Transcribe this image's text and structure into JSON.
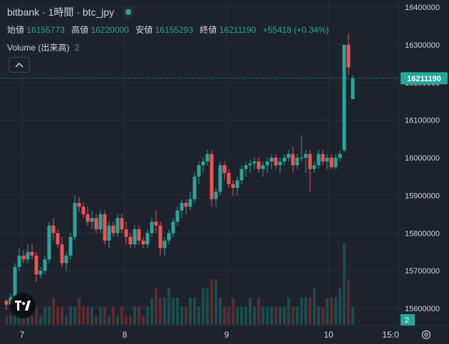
{
  "legend": {
    "symbol": "bitbank · 1時間 · btc_jpy",
    "open_label": "始値",
    "open": "16155773",
    "high_label": "高値",
    "high": "16220000",
    "low_label": "安値",
    "low": "16155293",
    "close_label": "終値",
    "close": "16211190",
    "change": "+55418 (+0.34%)",
    "volume_label": "Volume (出来高)",
    "volume_value": "2"
  },
  "price_scale": {
    "ticks": [
      15600000,
      15700000,
      15800000,
      15900000,
      16000000,
      16100000,
      16200000,
      16300000,
      16400000
    ],
    "last_price": 16211190,
    "last_price_label": "16211190",
    "volume_label": "2"
  },
  "time_scale": {
    "labels": [
      "7",
      "8",
      "9",
      "10",
      "15:0"
    ]
  },
  "colors": {
    "up": "#26a69a",
    "down": "#ef5350",
    "background": "#1e222d",
    "grid": "#2a2e39"
  },
  "icons": {
    "visibility": "eye-icon",
    "collapse": "chevron-up-icon",
    "logo": "tradingview-logo-icon",
    "settings": "gear-icon"
  },
  "chart_data": {
    "type": "candlestick",
    "interval": "1時間",
    "ylim": [
      15560000,
      16420000
    ],
    "candles": [
      [
        15620000,
        15625000,
        15595000,
        15610000
      ],
      [
        15610000,
        15640000,
        15600000,
        15630000
      ],
      [
        15630000,
        15720000,
        15625000,
        15710000
      ],
      [
        15710000,
        15760000,
        15700000,
        15740000
      ],
      [
        15740000,
        15755000,
        15720000,
        15730000
      ],
      [
        15730000,
        15770000,
        15720000,
        15750000
      ],
      [
        15750000,
        15770000,
        15730000,
        15740000
      ],
      [
        15740000,
        15750000,
        15670000,
        15690000
      ],
      [
        15690000,
        15710000,
        15680000,
        15700000
      ],
      [
        15700000,
        15740000,
        15690000,
        15730000
      ],
      [
        15730000,
        15830000,
        15720000,
        15820000
      ],
      [
        15820000,
        15840000,
        15780000,
        15800000
      ],
      [
        15800000,
        15810000,
        15760000,
        15770000
      ],
      [
        15770000,
        15790000,
        15710000,
        15720000
      ],
      [
        15720000,
        15750000,
        15700000,
        15740000
      ],
      [
        15740000,
        15800000,
        15730000,
        15790000
      ],
      [
        15790000,
        15900000,
        15780000,
        15880000
      ],
      [
        15880000,
        15895000,
        15855000,
        15870000
      ],
      [
        15870000,
        15880000,
        15840000,
        15850000
      ],
      [
        15850000,
        15870000,
        15820000,
        15830000
      ],
      [
        15830000,
        15860000,
        15810000,
        15840000
      ],
      [
        15840000,
        15850000,
        15800000,
        15810000
      ],
      [
        15810000,
        15860000,
        15800000,
        15850000
      ],
      [
        15850000,
        15860000,
        15770000,
        15780000
      ],
      [
        15780000,
        15830000,
        15760000,
        15820000
      ],
      [
        15820000,
        15830000,
        15790000,
        15800000
      ],
      [
        15800000,
        15850000,
        15790000,
        15840000
      ],
      [
        15840000,
        15850000,
        15800000,
        15810000
      ],
      [
        15810000,
        15830000,
        15770000,
        15790000
      ],
      [
        15790000,
        15800000,
        15760000,
        15770000
      ],
      [
        15770000,
        15820000,
        15760000,
        15810000
      ],
      [
        15810000,
        15820000,
        15770000,
        15780000
      ],
      [
        15780000,
        15790000,
        15760000,
        15770000
      ],
      [
        15770000,
        15810000,
        15760000,
        15800000
      ],
      [
        15800000,
        15840000,
        15790000,
        15830000
      ],
      [
        15830000,
        15860000,
        15800000,
        15820000
      ],
      [
        15820000,
        15830000,
        15740000,
        15760000
      ],
      [
        15760000,
        15790000,
        15740000,
        15780000
      ],
      [
        15780000,
        15810000,
        15770000,
        15800000
      ],
      [
        15800000,
        15840000,
        15790000,
        15830000
      ],
      [
        15830000,
        15870000,
        15820000,
        15860000
      ],
      [
        15860000,
        15890000,
        15840000,
        15880000
      ],
      [
        15880000,
        15890000,
        15850000,
        15870000
      ],
      [
        15870000,
        15910000,
        15860000,
        15890000
      ],
      [
        15890000,
        15960000,
        15880000,
        15950000
      ],
      [
        15950000,
        15990000,
        15930000,
        15980000
      ],
      [
        15980000,
        16000000,
        15960000,
        15990000
      ],
      [
        15990000,
        16020000,
        15980000,
        16010000
      ],
      [
        16010000,
        16020000,
        15870000,
        15890000
      ],
      [
        15890000,
        15920000,
        15870000,
        15910000
      ],
      [
        15910000,
        15990000,
        15900000,
        15980000
      ],
      [
        15980000,
        15990000,
        15940000,
        15960000
      ],
      [
        15960000,
        15970000,
        15920000,
        15930000
      ],
      [
        15930000,
        15940000,
        15900000,
        15920000
      ],
      [
        15920000,
        15950000,
        15900000,
        15940000
      ],
      [
        15940000,
        15980000,
        15930000,
        15970000
      ],
      [
        15970000,
        15990000,
        15950000,
        15980000
      ],
      [
        15980000,
        15995000,
        15960000,
        15985000
      ],
      [
        15985000,
        16000000,
        15970000,
        15990000
      ],
      [
        15990000,
        16000000,
        15960000,
        15970000
      ],
      [
        15970000,
        15990000,
        15950000,
        15980000
      ],
      [
        15980000,
        16000000,
        15960000,
        15990000
      ],
      [
        15990000,
        16010000,
        15970000,
        16000000
      ],
      [
        16000000,
        16010000,
        15970000,
        15980000
      ],
      [
        15980000,
        16000000,
        15960000,
        15990000
      ],
      [
        15990000,
        16010000,
        15980000,
        16000000
      ],
      [
        16000000,
        16020000,
        15990000,
        16010000
      ],
      [
        16010000,
        16030000,
        15960000,
        15980000
      ],
      [
        15980000,
        16010000,
        15970000,
        16000000
      ],
      [
        16000000,
        16060000,
        15990000,
        16000000
      ],
      [
        16000000,
        16020000,
        15960000,
        16010000
      ],
      [
        16010000,
        16020000,
        15910000,
        15970000
      ],
      [
        15970000,
        15990000,
        15960000,
        15980000
      ],
      [
        15980000,
        16020000,
        15970000,
        16010000
      ],
      [
        16010000,
        16020000,
        15980000,
        15990000
      ],
      [
        15990000,
        16010000,
        15970000,
        16000000
      ],
      [
        16000000,
        16010000,
        15970000,
        15975000
      ],
      [
        15975000,
        16010000,
        15970000,
        16000000
      ],
      [
        16000000,
        16020000,
        15990000,
        16010000
      ],
      [
        16020000,
        16300000,
        16015000,
        16300000
      ],
      [
        16300000,
        16330000,
        16220000,
        16240000
      ],
      [
        16155773,
        16220000,
        16155293,
        16211190
      ]
    ],
    "volumes": [
      1,
      1,
      1,
      2,
      1,
      2,
      1,
      2,
      1,
      2,
      2,
      3,
      2,
      2,
      1,
      2,
      2,
      3,
      2,
      2,
      2,
      1,
      2,
      2,
      1,
      2,
      1,
      2,
      1,
      1,
      2,
      2,
      1,
      2,
      3,
      4,
      3,
      3,
      4,
      3,
      3,
      2,
      2,
      3,
      3,
      2,
      4,
      4,
      5,
      5,
      3,
      2,
      2,
      3,
      2,
      2,
      2,
      3,
      2,
      3,
      2,
      2,
      2,
      2,
      2,
      2,
      3,
      2,
      2,
      3,
      3,
      3,
      4,
      2,
      2,
      3,
      3,
      3,
      4,
      9,
      5,
      2
    ]
  }
}
